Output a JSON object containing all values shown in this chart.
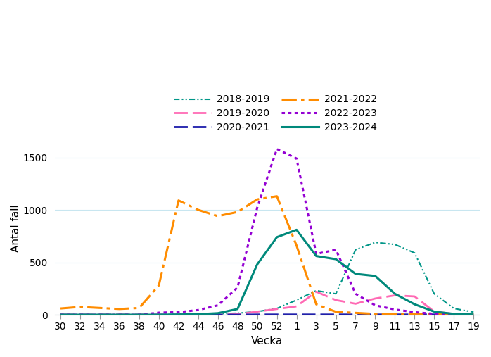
{
  "title": "",
  "xlabel": "Vecka",
  "ylabel": "Antal fall",
  "ylim": [
    0,
    1650
  ],
  "yticks": [
    0,
    500,
    1000,
    1500
  ],
  "x_labels": [
    "30",
    "32",
    "34",
    "36",
    "38",
    "40",
    "42",
    "44",
    "46",
    "48",
    "50",
    "52",
    "1",
    "3",
    "5",
    "7",
    "9",
    "11",
    "13",
    "15",
    "17",
    "19"
  ],
  "series": [
    {
      "label": "2018-2019",
      "color": "#009688",
      "linestyle": "dashdotdot",
      "linewidth": 1.5,
      "values": [
        0,
        0,
        0,
        0,
        0,
        0,
        5,
        5,
        10,
        15,
        30,
        60,
        140,
        230,
        200,
        620,
        690,
        670,
        590,
        200,
        60,
        25
      ]
    },
    {
      "label": "2019-2020",
      "color": "#FF69B4",
      "linestyle": "longdash",
      "linewidth": 2.0,
      "values": [
        0,
        0,
        0,
        0,
        0,
        0,
        0,
        0,
        0,
        5,
        30,
        55,
        80,
        220,
        140,
        105,
        155,
        185,
        175,
        30,
        8,
        2
      ]
    },
    {
      "label": "2020-2021",
      "color": "#1a1aaa",
      "linestyle": "longdash",
      "linewidth": 2.0,
      "values": [
        0,
        0,
        0,
        0,
        0,
        0,
        0,
        0,
        0,
        0,
        2,
        2,
        2,
        2,
        2,
        2,
        2,
        2,
        2,
        2,
        2,
        2
      ]
    },
    {
      "label": "2021-2022",
      "color": "#FF8C00",
      "linestyle": "dashdot",
      "linewidth": 2.2,
      "values": [
        60,
        75,
        65,
        55,
        65,
        280,
        1090,
        1000,
        940,
        980,
        1100,
        1130,
        660,
        100,
        28,
        18,
        8,
        4,
        4,
        4,
        2,
        2
      ]
    },
    {
      "label": "2022-2023",
      "color": "#9400D3",
      "linestyle": "dotted",
      "linewidth": 2.2,
      "values": [
        0,
        0,
        0,
        0,
        0,
        20,
        25,
        45,
        90,
        260,
        1020,
        1580,
        1490,
        580,
        620,
        200,
        90,
        50,
        25,
        8,
        4,
        0
      ]
    },
    {
      "label": "2023-2024",
      "color": "#00897B",
      "linestyle": "solid",
      "linewidth": 2.2,
      "values": [
        0,
        0,
        0,
        0,
        0,
        0,
        2,
        5,
        15,
        55,
        480,
        740,
        810,
        560,
        530,
        390,
        370,
        200,
        100,
        30,
        8,
        2
      ]
    }
  ],
  "legend_order": [
    0,
    1,
    2,
    3,
    4,
    5
  ],
  "legend_ncol_order": [
    0,
    2,
    4,
    1,
    3,
    5
  ],
  "background_color": "#ffffff",
  "grid_color": "#c8e6f0",
  "axis_fontsize": 11,
  "tick_fontsize": 10
}
